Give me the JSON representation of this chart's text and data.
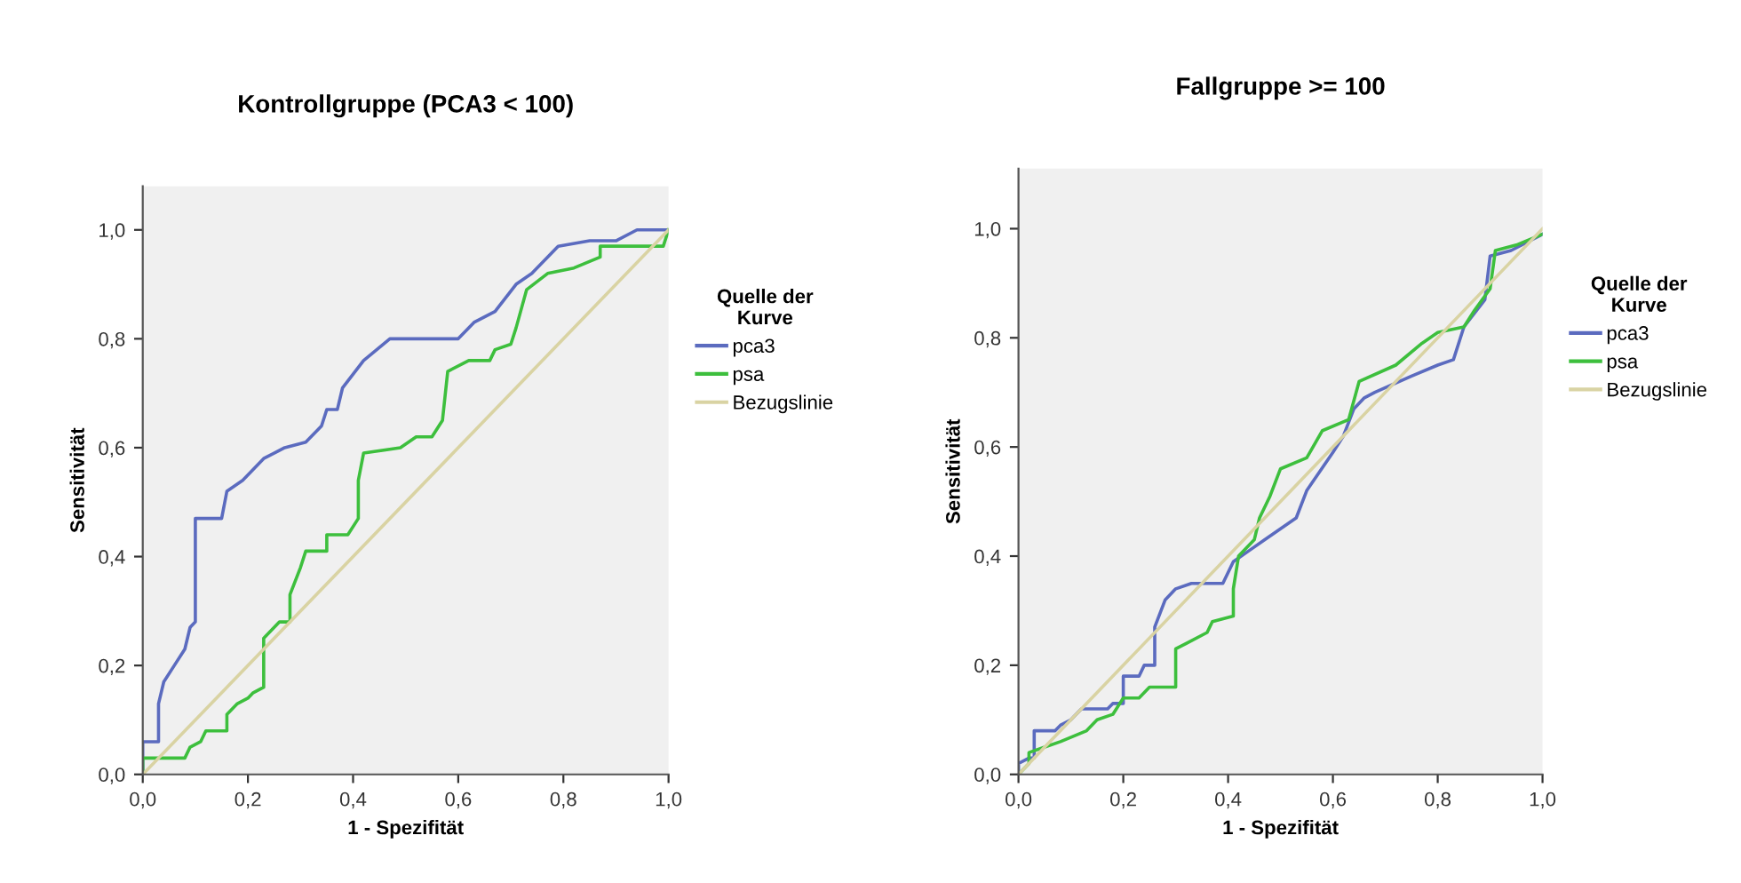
{
  "chart_data": [
    {
      "type": "line",
      "title": "Kontrollgruppe (PCA3 < 100)",
      "xlabel": "1 - Spezifität",
      "ylabel": "Sensitivität",
      "legend_title": "Quelle der Kurve",
      "legend": "right",
      "grid": false,
      "xlim": [
        0,
        1.0
      ],
      "ylim": [
        0,
        1.08
      ],
      "xticks": [
        {
          "value": 0,
          "label": "0,0"
        },
        {
          "value": 0.2,
          "label": "0,2"
        },
        {
          "value": 0.4,
          "label": "0,4"
        },
        {
          "value": 0.6,
          "label": "0,6"
        },
        {
          "value": 0.8,
          "label": "0,8"
        },
        {
          "value": 1.0,
          "label": "1,0"
        }
      ],
      "yticks": [
        {
          "value": 0,
          "label": "0,0"
        },
        {
          "value": 0.2,
          "label": "0,2"
        },
        {
          "value": 0.4,
          "label": "0,4"
        },
        {
          "value": 0.6,
          "label": "0,6"
        },
        {
          "value": 0.8,
          "label": "0,8"
        },
        {
          "value": 1.0,
          "label": "1,0"
        }
      ],
      "series": [
        {
          "name": "pca3",
          "color": "#5b6bbf",
          "x": [
            0,
            0,
            0.03,
            0.03,
            0.04,
            0.06,
            0.08,
            0.09,
            0.1,
            0.1,
            0.15,
            0.16,
            0.19,
            0.21,
            0.23,
            0.27,
            0.31,
            0.34,
            0.35,
            0.37,
            0.38,
            0.42,
            0.47,
            0.6,
            0.63,
            0.67,
            0.71,
            0.74,
            0.79,
            0.85,
            0.9,
            0.94,
            1.0
          ],
          "values": [
            0,
            0.06,
            0.06,
            0.13,
            0.17,
            0.2,
            0.23,
            0.27,
            0.28,
            0.47,
            0.47,
            0.52,
            0.54,
            0.56,
            0.58,
            0.6,
            0.61,
            0.64,
            0.67,
            0.67,
            0.71,
            0.76,
            0.8,
            0.8,
            0.83,
            0.85,
            0.9,
            0.92,
            0.97,
            0.98,
            0.98,
            1.0,
            1.0
          ]
        },
        {
          "name": "psa",
          "color": "#3dbf3d",
          "x": [
            0,
            0,
            0.08,
            0.09,
            0.11,
            0.12,
            0.16,
            0.16,
            0.18,
            0.2,
            0.21,
            0.23,
            0.23,
            0.26,
            0.28,
            0.28,
            0.3,
            0.31,
            0.35,
            0.35,
            0.39,
            0.41,
            0.41,
            0.42,
            0.49,
            0.52,
            0.55,
            0.57,
            0.58,
            0.62,
            0.66,
            0.67,
            0.7,
            0.71,
            0.73,
            0.77,
            0.82,
            0.87,
            0.87,
            0.99,
            1.0
          ],
          "values": [
            0,
            0.03,
            0.03,
            0.05,
            0.06,
            0.08,
            0.08,
            0.11,
            0.13,
            0.14,
            0.15,
            0.16,
            0.25,
            0.28,
            0.28,
            0.33,
            0.38,
            0.41,
            0.41,
            0.44,
            0.44,
            0.47,
            0.54,
            0.59,
            0.6,
            0.62,
            0.62,
            0.65,
            0.74,
            0.76,
            0.76,
            0.78,
            0.79,
            0.82,
            0.89,
            0.92,
            0.93,
            0.95,
            0.97,
            0.97,
            1.0
          ]
        },
        {
          "name": "Bezugslinie",
          "color": "#d9d3a3",
          "x": [
            0,
            1.0
          ],
          "values": [
            0,
            1.0
          ]
        }
      ]
    },
    {
      "type": "line",
      "title": "Fallgruppe >= 100",
      "xlabel": "1 - Spezifität",
      "ylabel": "Sensitivität",
      "legend_title": "Quelle der Kurve",
      "legend": "right",
      "grid": false,
      "xlim": [
        0,
        1.0
      ],
      "ylim": [
        0,
        1.11
      ],
      "xticks": [
        {
          "value": 0,
          "label": "0,0"
        },
        {
          "value": 0.2,
          "label": "0,2"
        },
        {
          "value": 0.4,
          "label": "0,4"
        },
        {
          "value": 0.6,
          "label": "0,6"
        },
        {
          "value": 0.8,
          "label": "0,8"
        },
        {
          "value": 1.0,
          "label": "1,0"
        }
      ],
      "yticks": [
        {
          "value": 0,
          "label": "0,0"
        },
        {
          "value": 0.2,
          "label": "0,2"
        },
        {
          "value": 0.4,
          "label": "0,4"
        },
        {
          "value": 0.6,
          "label": "0,6"
        },
        {
          "value": 0.8,
          "label": "0,8"
        },
        {
          "value": 1.0,
          "label": "1,0"
        }
      ],
      "series": [
        {
          "name": "pca3",
          "color": "#5b6bbf",
          "x": [
            0,
            0,
            0.02,
            0.03,
            0.03,
            0.07,
            0.08,
            0.1,
            0.12,
            0.17,
            0.18,
            0.2,
            0.2,
            0.23,
            0.24,
            0.26,
            0.26,
            0.28,
            0.3,
            0.33,
            0.39,
            0.41,
            0.44,
            0.47,
            0.5,
            0.53,
            0.55,
            0.6,
            0.62,
            0.64,
            0.66,
            0.68,
            0.75,
            0.8,
            0.83,
            0.85,
            0.89,
            0.9,
            0.94,
            1.0
          ],
          "values": [
            0,
            0.02,
            0.03,
            0.03,
            0.08,
            0.08,
            0.09,
            0.1,
            0.12,
            0.12,
            0.13,
            0.13,
            0.18,
            0.18,
            0.2,
            0.2,
            0.27,
            0.32,
            0.34,
            0.35,
            0.35,
            0.39,
            0.41,
            0.43,
            0.45,
            0.47,
            0.52,
            0.59,
            0.62,
            0.67,
            0.69,
            0.7,
            0.73,
            0.75,
            0.76,
            0.82,
            0.87,
            0.95,
            0.96,
            0.99
          ]
        },
        {
          "name": "psa",
          "color": "#3dbf3d",
          "x": [
            0,
            0.02,
            0.02,
            0.05,
            0.08,
            0.13,
            0.15,
            0.18,
            0.2,
            0.23,
            0.25,
            0.3,
            0.3,
            0.32,
            0.36,
            0.37,
            0.41,
            0.41,
            0.42,
            0.45,
            0.46,
            0.48,
            0.5,
            0.55,
            0.58,
            0.63,
            0.65,
            0.72,
            0.77,
            0.8,
            0.85,
            0.87,
            0.9,
            0.91,
            0.95,
            1.0
          ],
          "values": [
            0,
            0.02,
            0.04,
            0.05,
            0.06,
            0.08,
            0.1,
            0.11,
            0.14,
            0.14,
            0.16,
            0.16,
            0.23,
            0.24,
            0.26,
            0.28,
            0.29,
            0.34,
            0.4,
            0.43,
            0.47,
            0.51,
            0.56,
            0.58,
            0.63,
            0.65,
            0.72,
            0.75,
            0.79,
            0.81,
            0.82,
            0.85,
            0.89,
            0.96,
            0.97,
            0.99
          ]
        },
        {
          "name": "Bezugslinie",
          "color": "#d9d3a3",
          "x": [
            0,
            1.0
          ],
          "values": [
            0,
            1.0
          ]
        }
      ]
    }
  ]
}
